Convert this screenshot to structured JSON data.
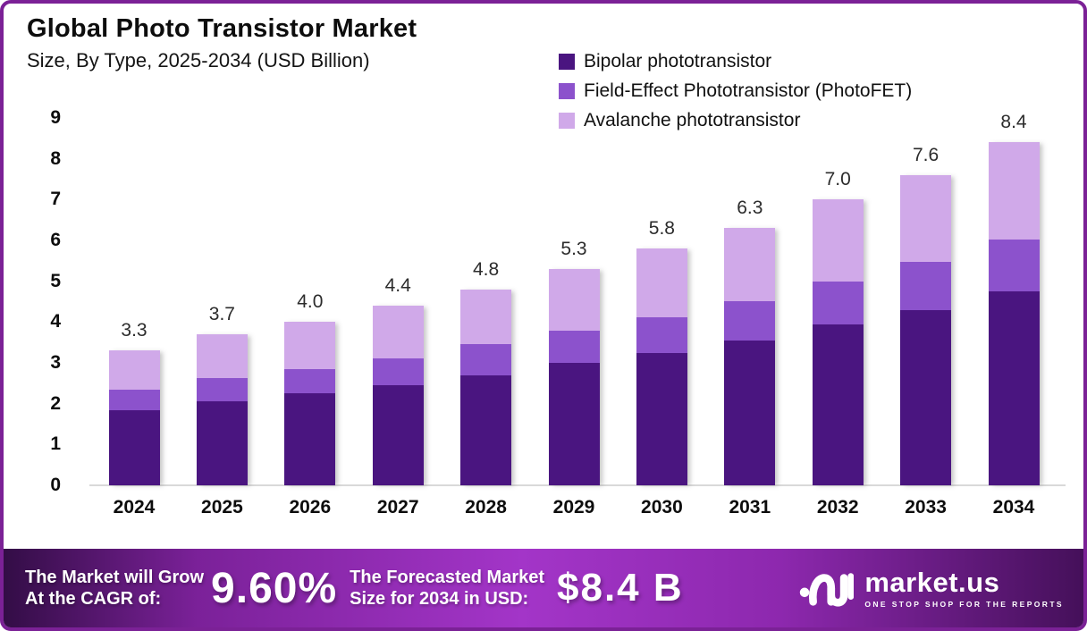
{
  "header": {
    "title": "Global Photo Transistor Market",
    "subtitle": "Size, By Type, 2025-2034 (USD Billion)"
  },
  "chart_data": {
    "type": "bar",
    "stacked": true,
    "title": "Global Photo Transistor Market Size, By Type, 2025-2034 (USD Billion)",
    "categories": [
      "2024",
      "2025",
      "2026",
      "2027",
      "2028",
      "2029",
      "2030",
      "2031",
      "2032",
      "2033",
      "2034"
    ],
    "series": [
      {
        "name": "Bipolar phototransistor",
        "color": "#4a1580",
        "values": [
          1.85,
          2.05,
          2.25,
          2.45,
          2.7,
          3.0,
          3.25,
          3.55,
          3.95,
          4.3,
          4.75
        ]
      },
      {
        "name": "Field-Effect Phototransistor (PhotoFET)",
        "color": "#8c52cc",
        "values": [
          0.5,
          0.58,
          0.6,
          0.67,
          0.75,
          0.79,
          0.86,
          0.97,
          1.05,
          1.17,
          1.28
        ]
      },
      {
        "name": "Avalanche phototransistor",
        "color": "#d0a9e9",
        "values": [
          0.95,
          1.07,
          1.15,
          1.28,
          1.35,
          1.51,
          1.69,
          1.78,
          2.0,
          2.13,
          2.37
        ]
      }
    ],
    "totals": [
      "3.3",
      "3.7",
      "4.0",
      "4.4",
      "4.8",
      "5.3",
      "5.8",
      "6.3",
      "7.0",
      "7.6",
      "8.4"
    ],
    "ylabel": "",
    "xlabel": "",
    "ylim": [
      0,
      9
    ],
    "y_ticks": [
      0,
      1,
      2,
      3,
      4,
      5,
      6,
      7,
      8,
      9
    ],
    "grid": false,
    "legend_position": "top-right"
  },
  "banner": {
    "cagr_label_line1": "The Market will Grow",
    "cagr_label_line2": "At the CAGR of:",
    "cagr_value": "9.60%",
    "forecast_label_line1": "The Forecasted Market",
    "forecast_label_line2": "Size for 2034 in USD:",
    "forecast_value": "$8.4 B",
    "logo_text": "market.us",
    "logo_tagline": "ONE STOP SHOP FOR THE REPORTS"
  },
  "colors": {
    "frame_border": "#7b2196",
    "banner_gradient": [
      "#330d46",
      "#a335c8",
      "#45105a"
    ],
    "axis_line": "#d9d9d9",
    "text": "#0d0d0d"
  }
}
